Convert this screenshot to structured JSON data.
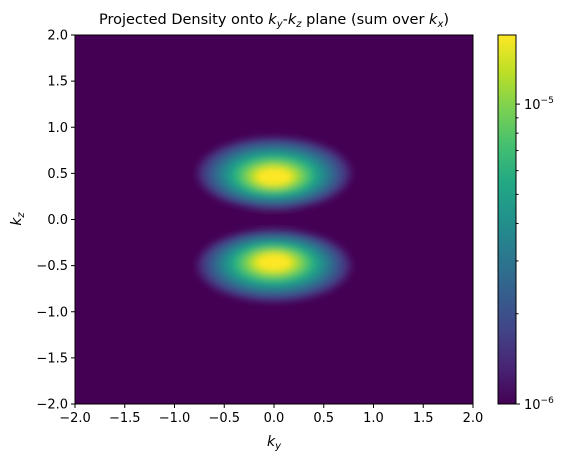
{
  "chart_data": {
    "type": "heatmap",
    "title": "Projected Density onto k_y-k_z plane (sum over k_x)",
    "title_parts": {
      "prefix": "Projected Density onto ",
      "var1_base": "k",
      "var1_sub": "y",
      "dash": "-",
      "var2_base": "k",
      "var2_sub": "z",
      "middle": " plane (sum over ",
      "var3_base": "k",
      "var3_sub": "x",
      "suffix": ")"
    },
    "xlabel": "k_y",
    "xlabel_parts": {
      "base": "k",
      "sub": "y"
    },
    "ylabel": "k_z",
    "ylabel_parts": {
      "base": "k",
      "sub": "z"
    },
    "xlim": [
      -2.0,
      2.0
    ],
    "ylim": [
      -2.0,
      2.0
    ],
    "xticks": [
      -2.0,
      -1.5,
      -1.0,
      -0.5,
      0.0,
      0.5,
      1.0,
      1.5,
      2.0
    ],
    "xtick_labels": [
      "−2.0",
      "−1.5",
      "−1.0",
      "−0.5",
      "0.0",
      "0.5",
      "1.0",
      "1.5",
      "2.0"
    ],
    "yticks": [
      -2.0,
      -1.5,
      -1.0,
      -0.5,
      0.0,
      0.5,
      1.0,
      1.5,
      2.0
    ],
    "ytick_labels": [
      "−2.0",
      "−1.5",
      "−1.0",
      "−0.5",
      "0.0",
      "0.5",
      "1.0",
      "1.5",
      "2.0"
    ],
    "colormap": "viridis",
    "color_scale": "log",
    "color_range": [
      1e-06,
      1.7e-05
    ],
    "colorbar_ticks": [
      {
        "value": 1e-06,
        "base": "10",
        "exp": "−6"
      },
      {
        "value": 1e-05,
        "base": "10",
        "exp": "−5"
      }
    ],
    "colorbar_minor_ticks": [
      2e-06,
      3e-06,
      4e-06,
      5e-06,
      6e-06,
      7e-06,
      8e-06,
      9e-06
    ],
    "features": [
      {
        "name": "upper lobe",
        "center_ky": 0.0,
        "center_kz": 0.5,
        "peak": 1.7e-05
      },
      {
        "name": "lower lobe",
        "center_ky": 0.0,
        "center_kz": -0.5,
        "peak": 1.7e-05
      },
      {
        "name": "node gap",
        "center_ky": 0.0,
        "center_kz": 0.0
      }
    ],
    "grid": false,
    "legend": "none"
  },
  "colors": {
    "background": "#440154",
    "peak": "#fde725"
  }
}
